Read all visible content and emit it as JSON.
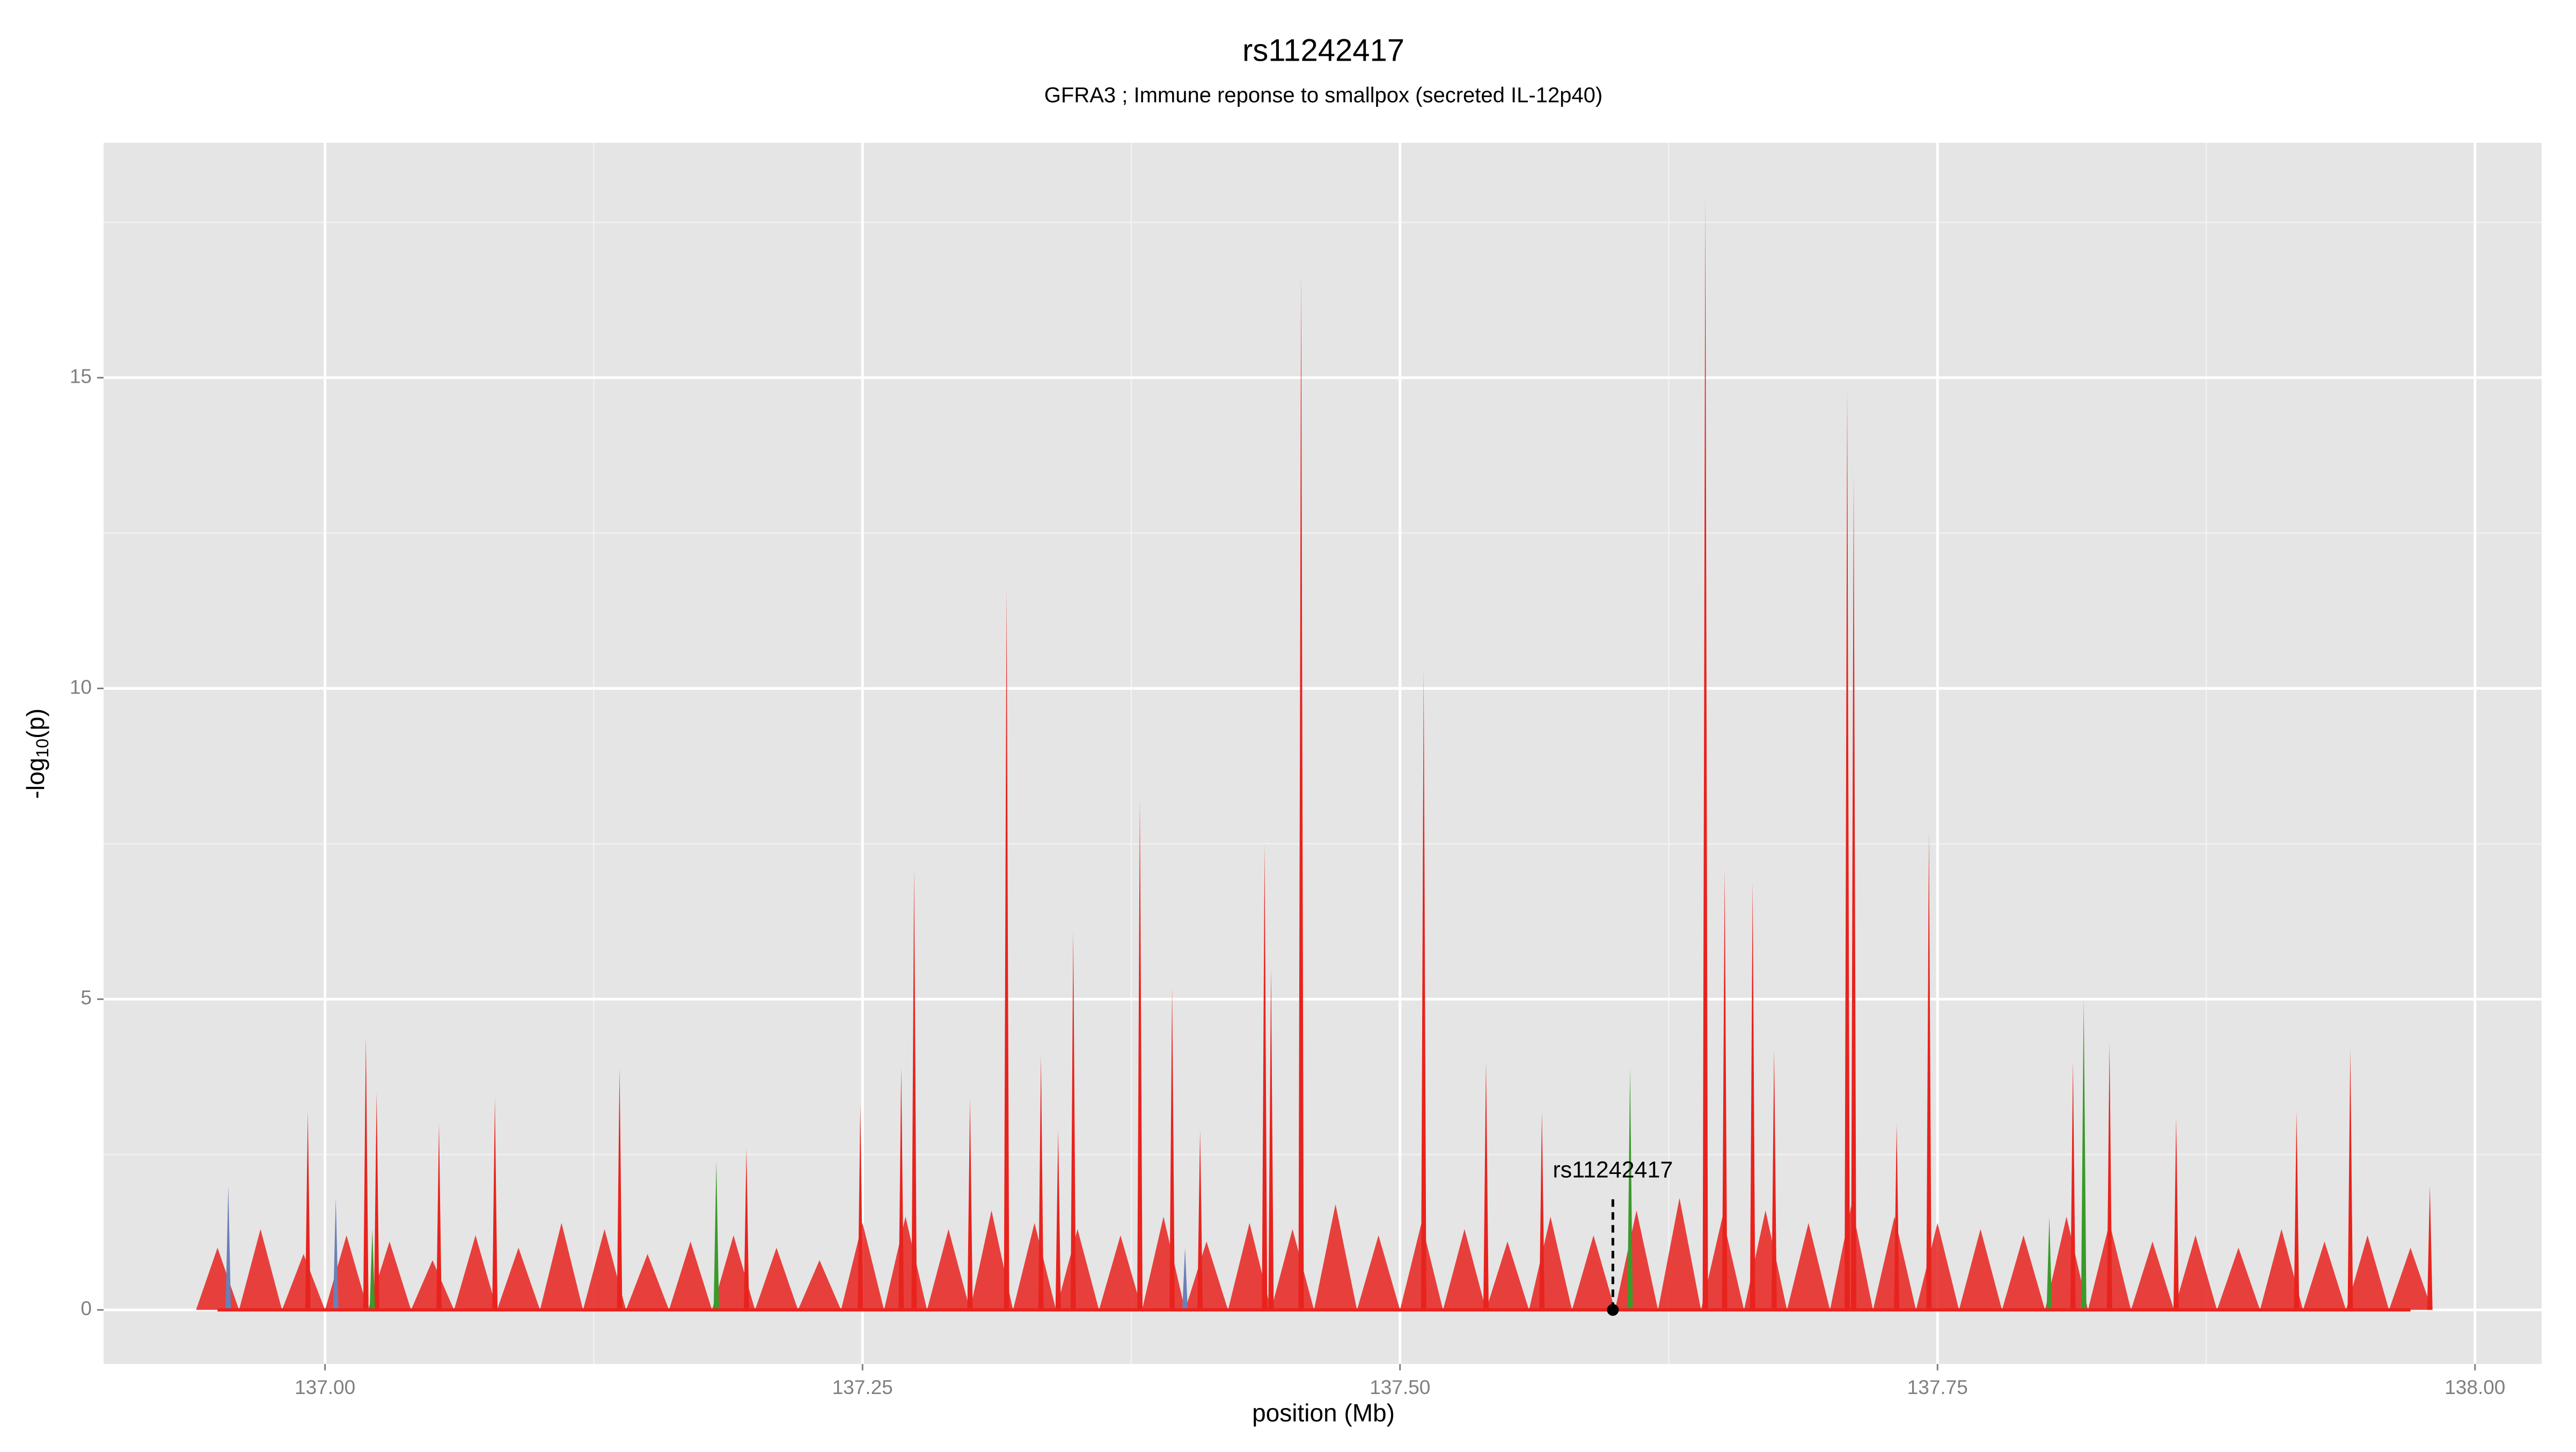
{
  "chart_data": {
    "type": "spike",
    "title": "rs11242417",
    "subtitle": "GFRA3 ; Immune reponse to smallpox (secreted IL-12p40)",
    "xlabel": "position (Mb)",
    "ylabel": {
      "prefix": "-log",
      "subscript": "10",
      "suffix": "(p)"
    },
    "xlim": [
      136.897,
      138.031
    ],
    "ylim": [
      -0.87,
      18.78
    ],
    "xticks": [
      {
        "value": 137,
        "label": "137.00"
      },
      {
        "value": 137.25,
        "label": "137.25"
      },
      {
        "value": 137.5,
        "label": "137.50"
      },
      {
        "value": 137.75,
        "label": "137.75"
      },
      {
        "value": 138,
        "label": "138.00"
      }
    ],
    "yticks": [
      0,
      5,
      10,
      15
    ],
    "x_minor_ticks": [
      137.125,
      137.375,
      137.625,
      137.875
    ],
    "y_minor_ticks": [
      2.5,
      7.5,
      12.5,
      17.5
    ],
    "grid": true,
    "series": [
      {
        "color": "#e8231e",
        "width": "wide",
        "x": [
          136.95,
          136.97,
          136.99,
          137.01,
          137.03,
          137.05,
          137.07,
          137.09,
          137.11,
          137.13,
          137.15,
          137.17,
          137.19,
          137.21,
          137.23,
          137.25,
          137.27,
          137.29,
          137.31,
          137.33,
          137.35,
          137.37,
          137.39,
          137.41,
          137.43,
          137.45,
          137.47,
          137.49,
          137.51,
          137.53,
          137.55,
          137.57,
          137.59,
          137.61,
          137.63,
          137.65,
          137.67,
          137.69,
          137.71,
          137.73,
          137.75,
          137.77,
          137.79,
          137.81,
          137.83,
          137.85,
          137.87,
          137.89,
          137.91,
          137.93,
          137.95,
          137.97
        ],
        "values": [
          1.0,
          1.3,
          0.9,
          1.2,
          1.1,
          0.8,
          1.2,
          1.0,
          1.4,
          1.3,
          0.9,
          1.1,
          1.2,
          1.0,
          0.8,
          1.4,
          1.5,
          1.3,
          1.6,
          1.4,
          1.3,
          1.2,
          1.5,
          1.1,
          1.4,
          1.3,
          1.7,
          1.2,
          1.4,
          1.3,
          1.1,
          1.5,
          1.2,
          1.6,
          1.8,
          1.5,
          1.6,
          1.4,
          1.7,
          1.5,
          1.4,
          1.3,
          1.2,
          1.5,
          1.4,
          1.1,
          1.2,
          1.0,
          1.3,
          1.1,
          1.2,
          1.0
        ]
      },
      {
        "color": "#6b7fb8",
        "width": "thin",
        "x": [
          136.955,
          137.005,
          137.4
        ],
        "values": [
          2.0,
          1.8,
          1.0
        ]
      },
      {
        "color": "#e8231e",
        "width": "thin",
        "x": [
          137.642,
          137.454,
          137.708,
          137.711,
          137.317,
          137.511,
          137.379,
          137.274,
          137.437,
          137.746,
          137.651,
          137.664,
          137.348,
          137.394,
          137.44,
          137.674,
          137.83,
          137.942,
          137.333,
          137.019,
          137.54,
          137.137,
          137.813,
          136.992,
          137.053,
          137.079,
          137.249,
          137.3,
          137.341,
          137.566,
          137.731,
          137.861,
          137.917,
          137.407,
          137.196,
          137.979,
          137.024,
          137.268
        ],
        "values": [
          17.9,
          16.7,
          14.8,
          13.4,
          11.6,
          10.3,
          8.2,
          7.1,
          7.5,
          7.7,
          7.1,
          6.9,
          6.1,
          5.2,
          5.5,
          4.2,
          4.3,
          4.2,
          4.1,
          4.4,
          4.0,
          3.9,
          4.0,
          3.2,
          3.0,
          3.4,
          3.3,
          3.4,
          2.9,
          3.2,
          3.0,
          3.1,
          3.2,
          2.9,
          2.6,
          2.0,
          3.5,
          3.9
        ]
      },
      {
        "color": "#3a9a2a",
        "width": "thin",
        "x": [
          137.818,
          137.607,
          137.182,
          137.802,
          137.022
        ],
        "values": [
          5.0,
          3.9,
          2.4,
          1.5,
          1.3
        ]
      }
    ],
    "annotation": {
      "label": "rs11242417",
      "x": 137.599,
      "y": 0
    }
  }
}
